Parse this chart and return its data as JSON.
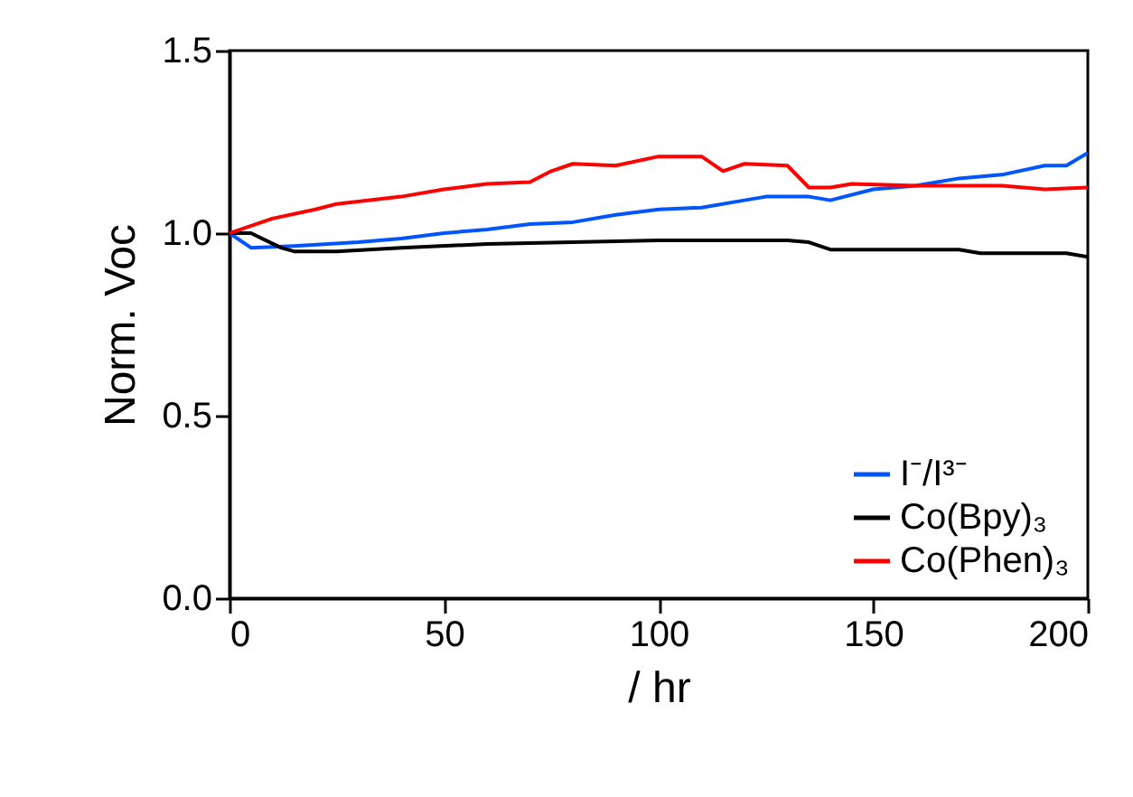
{
  "chart_data": {
    "type": "line",
    "xlabel": "/ hr",
    "ylabel": "Norm. Voc",
    "xlim": [
      0,
      200
    ],
    "xticks": [
      0,
      50,
      100,
      150,
      200
    ],
    "ylim": [
      0,
      1.5
    ],
    "yticks": [
      {
        "value": 0,
        "label": "0.0"
      },
      {
        "value": 0.5,
        "label": "0.5"
      },
      {
        "value": 1,
        "label": "1.0"
      },
      {
        "value": 1.5,
        "label": "1.5"
      }
    ],
    "grid": false,
    "legend": "bottom right",
    "marker": "none",
    "line_style": "solid",
    "series": [
      {
        "name": "I⁻/I³⁻",
        "color": "#0055ff",
        "x": [
          0,
          5,
          15,
          30,
          40,
          50,
          60,
          70,
          80,
          90,
          100,
          110,
          120,
          125,
          135,
          140,
          150,
          160,
          170,
          180,
          190,
          195,
          200
        ],
        "values": [
          1.0,
          0.96,
          0.965,
          0.975,
          0.985,
          1.0,
          1.01,
          1.025,
          1.03,
          1.05,
          1.065,
          1.07,
          1.09,
          1.1,
          1.1,
          1.09,
          1.12,
          1.13,
          1.15,
          1.16,
          1.185,
          1.185,
          1.22
        ]
      },
      {
        "name": "Co(Bpy)₃",
        "color": "#000000",
        "x": [
          0,
          5,
          12,
          15,
          25,
          40,
          60,
          80,
          100,
          130,
          135,
          140,
          150,
          170,
          175,
          195,
          200
        ],
        "values": [
          1.0,
          1.0,
          0.96,
          0.95,
          0.95,
          0.96,
          0.97,
          0.975,
          0.98,
          0.98,
          0.975,
          0.955,
          0.955,
          0.955,
          0.945,
          0.945,
          0.935
        ]
      },
      {
        "name": "Co(Phen)₃",
        "color": "#ff0000",
        "x": [
          0,
          10,
          20,
          25,
          40,
          50,
          60,
          70,
          75,
          80,
          90,
          100,
          110,
          115,
          120,
          130,
          135,
          140,
          145,
          160,
          170,
          180,
          190,
          200
        ],
        "values": [
          1.0,
          1.04,
          1.065,
          1.08,
          1.1,
          1.12,
          1.135,
          1.14,
          1.17,
          1.19,
          1.185,
          1.21,
          1.21,
          1.17,
          1.19,
          1.185,
          1.125,
          1.125,
          1.135,
          1.13,
          1.13,
          1.13,
          1.12,
          1.125
        ]
      }
    ]
  }
}
